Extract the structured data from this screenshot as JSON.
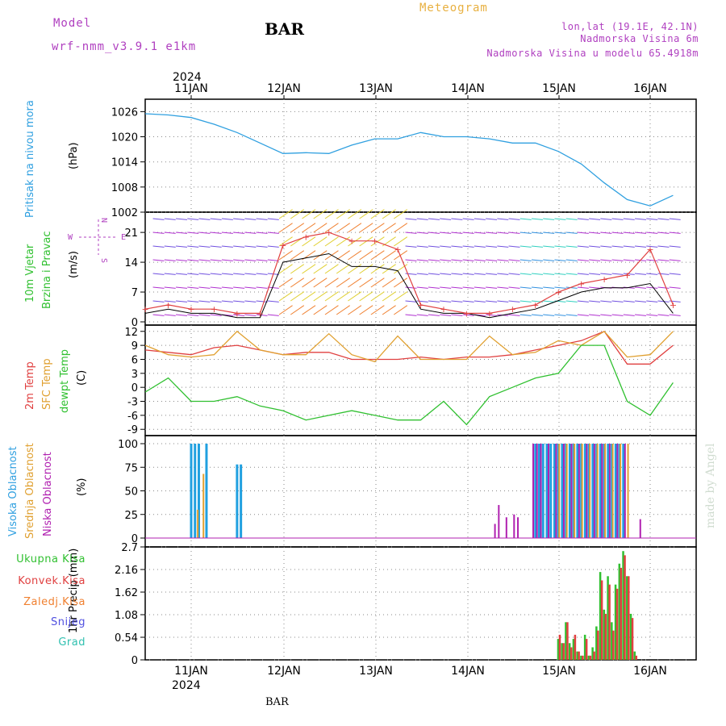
{
  "header": {
    "model_label": "Model",
    "model_name": "wrf-nmm_v3.9.1 e1km",
    "station": "BAR",
    "product": "Meteogram",
    "lonlat": "lon,lat (19.1E, 42.1N)",
    "elevation": "Nadmorska Visina 6m",
    "model_elevation": "Nadmorska Visina u modelu 65.4918m",
    "watermark": "made by Angel",
    "footer_station": "BAR"
  },
  "time_axis": {
    "year": "2024",
    "labels": [
      "11JAN",
      "12JAN",
      "13JAN",
      "14JAN",
      "15JAN",
      "16JAN"
    ],
    "range_hours": [
      -12,
      126
    ]
  },
  "wind_compass": {
    "n": "N",
    "s": "S",
    "e": "E",
    "w": "W"
  },
  "chart_data": [
    {
      "type": "line",
      "id": "pressure",
      "title": "Pritisak na nivou mora",
      "ylabel": "(hPa)",
      "yticks": [
        "1026",
        "1020",
        "1014",
        "1008",
        "1002"
      ],
      "ylim": [
        1002,
        1028
      ],
      "series": [
        {
          "name": "Pritisak na nivou mora",
          "color": "#30a0e0",
          "x": [
            -12,
            -6,
            0,
            6,
            12,
            18,
            24,
            30,
            36,
            42,
            48,
            54,
            60,
            66,
            72,
            78,
            84,
            90,
            96,
            102,
            108,
            114,
            120,
            126
          ],
          "y": [
            1025.5,
            1025.2,
            1024.6,
            1023.0,
            1021.0,
            1018.5,
            1016.0,
            1016.2,
            1016.0,
            1018.0,
            1019.5,
            1019.5,
            1021.0,
            1020.0,
            1020.0,
            1019.5,
            1018.5,
            1018.5,
            1016.5,
            1013.5,
            1009.0,
            1005.0,
            1003.5,
            1006.0
          ]
        }
      ]
    },
    {
      "type": "line",
      "id": "wind",
      "title": "10m Vjetar Brzina i Pravac",
      "ylabel": "(m/s)",
      "yticks": [
        "21",
        "14",
        "7",
        "0"
      ],
      "ylim": [
        0,
        25
      ],
      "series": [
        {
          "name": "brzina",
          "color": "#000000",
          "x": [
            -12,
            -6,
            0,
            6,
            12,
            18,
            24,
            30,
            36,
            42,
            48,
            54,
            60,
            66,
            72,
            78,
            84,
            90,
            96,
            102,
            108,
            114,
            120,
            126
          ],
          "y": [
            2,
            3,
            2,
            2,
            1,
            1,
            14,
            15,
            16,
            13,
            13,
            12,
            3,
            2,
            2,
            1,
            2,
            3,
            5,
            7,
            8,
            8,
            9,
            2
          ]
        },
        {
          "name": "udari",
          "color": "#e04040",
          "x": [
            -12,
            -6,
            0,
            6,
            12,
            18,
            24,
            30,
            36,
            42,
            48,
            54,
            60,
            66,
            72,
            78,
            84,
            90,
            96,
            102,
            108,
            114,
            120,
            126
          ],
          "y": [
            3,
            4,
            3,
            3,
            2,
            2,
            18,
            20,
            21,
            19,
            19,
            17,
            4,
            3,
            2,
            2,
            3,
            4,
            7,
            9,
            10,
            11,
            17,
            4
          ]
        }
      ]
    },
    {
      "type": "line",
      "id": "temperature",
      "ylabel": "(C)",
      "yticks": [
        "12",
        "9",
        "6",
        "3",
        "0",
        "-3",
        "-6",
        "-9"
      ],
      "ylim": [
        -10,
        13
      ],
      "series": [
        {
          "name": "2m Temp",
          "color": "#e04040",
          "x": [
            -12,
            -6,
            0,
            6,
            12,
            18,
            24,
            30,
            36,
            42,
            48,
            54,
            60,
            66,
            72,
            78,
            84,
            90,
            96,
            102,
            108,
            114,
            120,
            126
          ],
          "y": [
            8,
            7.5,
            7,
            8.5,
            9,
            8,
            7,
            7.5,
            7.5,
            6,
            6,
            6,
            6.5,
            6,
            6.5,
            6.5,
            7,
            8,
            9,
            10,
            12,
            5,
            5,
            9
          ]
        },
        {
          "name": "SFC Temp",
          "color": "#e0a030",
          "x": [
            -12,
            -6,
            0,
            6,
            12,
            18,
            24,
            30,
            36,
            42,
            48,
            54,
            60,
            66,
            72,
            78,
            84,
            90,
            96,
            102,
            108,
            114,
            120,
            126
          ],
          "y": [
            9,
            7,
            6.5,
            7,
            12,
            8,
            7,
            7,
            11.5,
            7,
            5.5,
            11,
            6,
            6,
            6,
            11,
            7,
            7.5,
            10,
            9,
            12,
            6.5,
            7,
            12
          ]
        },
        {
          "name": "dewpt Temp",
          "color": "#30c030",
          "x": [
            -12,
            -6,
            0,
            6,
            12,
            18,
            24,
            30,
            36,
            42,
            48,
            54,
            60,
            66,
            72,
            78,
            84,
            90,
            96,
            102,
            108,
            114,
            120,
            126
          ],
          "y": [
            -1,
            2,
            -3,
            -3,
            -2,
            -4,
            -5,
            -7,
            -6,
            -5,
            -6,
            -7,
            -7,
            -3,
            -8,
            -2,
            0,
            2,
            3,
            9,
            9,
            -3,
            -6,
            1
          ]
        }
      ]
    },
    {
      "type": "bar",
      "id": "cloud",
      "ylabel": "(%)",
      "yticks": [
        "100",
        "75",
        "50",
        "25",
        "0"
      ],
      "ylim": [
        0,
        100
      ],
      "series": [
        {
          "name": "Visoka Oblacnost",
          "color": "#20a0e0",
          "x": [
            0,
            1,
            2,
            4,
            12,
            13,
            90,
            91,
            92,
            93,
            94,
            95,
            96,
            97,
            98,
            99,
            100,
            101,
            102,
            103,
            104,
            105,
            106,
            107,
            108,
            109,
            110,
            111,
            112,
            113
          ],
          "y": [
            100,
            100,
            100,
            100,
            78,
            78,
            100,
            100,
            100,
            100,
            100,
            100,
            100,
            100,
            100,
            100,
            100,
            100,
            100,
            100,
            100,
            100,
            100,
            100,
            100,
            100,
            100,
            100,
            100,
            100
          ]
        },
        {
          "name": "Srednja Oblacnost",
          "color": "#e0a030",
          "x": [
            1.5,
            3,
            96,
            98,
            100,
            102,
            104,
            106,
            108,
            110,
            112,
            114
          ],
          "y": [
            30,
            68,
            100,
            100,
            100,
            100,
            100,
            100,
            100,
            100,
            100,
            100
          ]
        },
        {
          "name": "Niska Oblacnost",
          "color": "#b020b0",
          "x": [
            79,
            80,
            82,
            84,
            85,
            89,
            90,
            91,
            93,
            95,
            97,
            99,
            101,
            103,
            105,
            107,
            109,
            111,
            113,
            117
          ],
          "y": [
            15,
            35,
            22,
            25,
            22,
            100,
            100,
            100,
            100,
            100,
            100,
            100,
            100,
            100,
            100,
            100,
            100,
            100,
            100,
            20
          ]
        }
      ]
    },
    {
      "type": "bar",
      "id": "precip",
      "ylabel": "1hr Precip (mm)",
      "yticks": [
        "2.7",
        "2.16",
        "1.62",
        "1.08",
        "0.54",
        "0"
      ],
      "ylim": [
        0,
        2.7
      ],
      "series": [
        {
          "name": "Ukupna Kisa",
          "color": "#30c030",
          "x": [
            96,
            97,
            98,
            99,
            100,
            101,
            102,
            103,
            104,
            105,
            106,
            107,
            108,
            109,
            110,
            111,
            112,
            113,
            114,
            115,
            116,
            117
          ],
          "y": [
            0.5,
            0.4,
            0.9,
            0.4,
            0.5,
            0.2,
            0.1,
            0.6,
            0.1,
            0.3,
            0.8,
            2.1,
            1.2,
            2.0,
            0.9,
            1.8,
            2.3,
            2.6,
            2.0,
            1.1,
            0.2,
            0.0
          ]
        },
        {
          "name": "Konvek.Kisa",
          "color": "#e04040",
          "x": [
            96,
            97,
            98,
            99,
            100,
            101,
            102,
            103,
            104,
            105,
            106,
            107,
            108,
            109,
            110,
            111,
            112,
            113,
            114,
            115,
            116,
            117
          ],
          "y": [
            0.6,
            0.4,
            0.9,
            0.3,
            0.6,
            0.2,
            0.1,
            0.5,
            0.1,
            0.2,
            0.7,
            1.9,
            1.1,
            1.8,
            0.7,
            1.7,
            2.2,
            2.5,
            2.0,
            1.0,
            0.1,
            0.0
          ]
        },
        {
          "name": "Zaledj.Kisa",
          "color": "#f08030",
          "x": [],
          "y": []
        },
        {
          "name": "Snijeg",
          "color": "#5050e0",
          "x": [],
          "y": []
        },
        {
          "name": "Grad",
          "color": "#30c0b0",
          "x": [],
          "y": []
        }
      ]
    }
  ],
  "panel_labels": {
    "pressure": "Pritisak na nivou mora",
    "wind_a": "10m Vjetar",
    "wind_b": "Brzina i Pravac",
    "temp_a": "2m Temp",
    "temp_b": "SFC Temp",
    "temp_c": "dewpt Temp",
    "cloud_a": "Visoka Oblacnost",
    "cloud_b": "Srednja Oblacnost",
    "cloud_c": "Niska Oblacnost"
  }
}
